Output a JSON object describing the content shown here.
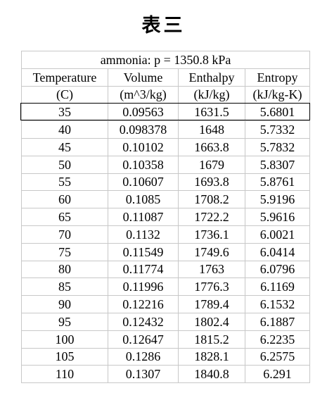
{
  "title": "表三",
  "table": {
    "caption": "ammonia: p = 1350.8 kPa",
    "header": [
      "Temperature",
      "Volume",
      "Enthalpy",
      "Entropy"
    ],
    "units": [
      "(C)",
      "(m^3/kg)",
      "(kJ/kg)",
      "(kJ/kg-K)"
    ],
    "rows": [
      [
        "35",
        "0.09563",
        "1631.5",
        "5.6801"
      ],
      [
        "40",
        "0.098378",
        "1648",
        "5.7332"
      ],
      [
        "45",
        "0.10102",
        "1663.8",
        "5.7832"
      ],
      [
        "50",
        "0.10358",
        "1679",
        "5.8307"
      ],
      [
        "55",
        "0.10607",
        "1693.8",
        "5.8761"
      ],
      [
        "60",
        "0.1085",
        "1708.2",
        "5.9196"
      ],
      [
        "65",
        "0.11087",
        "1722.2",
        "5.9616"
      ],
      [
        "70",
        "0.1132",
        "1736.1",
        "6.0021"
      ],
      [
        "75",
        "0.11549",
        "1749.6",
        "6.0414"
      ],
      [
        "80",
        "0.11774",
        "1763",
        "6.0796"
      ],
      [
        "85",
        "0.11996",
        "1776.3",
        "6.1169"
      ],
      [
        "90",
        "0.12216",
        "1789.4",
        "6.1532"
      ],
      [
        "95",
        "0.12432",
        "1802.4",
        "6.1887"
      ],
      [
        "100",
        "0.12647",
        "1815.2",
        "6.2235"
      ],
      [
        "105",
        "0.1286",
        "1828.1",
        "6.2575"
      ],
      [
        "110",
        "0.1307",
        "1840.8",
        "6.291"
      ]
    ]
  }
}
